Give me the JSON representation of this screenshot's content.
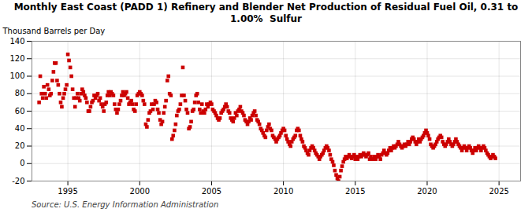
{
  "chart_data": {
    "type": "scatter",
    "title": "Monthly East Coast (PADD 1) Refinery and Blender Net Production of Residual Fuel Oil, 0.31 to\n1.00%  Sulfur",
    "ylabel": "Thousand Barrels per Day",
    "annotations": [
      "Source: U.S. Energy Information Administration"
    ],
    "color": "#cc0000",
    "marker": "square",
    "grid": true,
    "xlim": [
      1992.5,
      2026.5
    ],
    "xticks": [
      1995,
      2000,
      2005,
      2010,
      2015,
      2020,
      2025
    ],
    "ylim": [
      -20,
      140
    ],
    "yticks": [
      -20,
      0,
      20,
      40,
      60,
      80,
      100,
      120,
      140
    ],
    "x": [
      1993.0,
      1993.08,
      1993.17,
      1993.25,
      1993.33,
      1993.42,
      1993.5,
      1993.58,
      1993.67,
      1993.75,
      1993.83,
      1993.92,
      1994.0,
      1994.08,
      1994.17,
      1994.25,
      1994.33,
      1994.42,
      1994.5,
      1994.58,
      1994.67,
      1994.75,
      1994.83,
      1994.92,
      1995.0,
      1995.08,
      1995.17,
      1995.25,
      1995.33,
      1995.42,
      1995.5,
      1995.58,
      1995.67,
      1995.75,
      1995.83,
      1995.92,
      1996.0,
      1996.08,
      1996.17,
      1996.25,
      1996.33,
      1996.42,
      1996.5,
      1996.58,
      1996.67,
      1996.75,
      1996.83,
      1996.92,
      1997.0,
      1997.08,
      1997.17,
      1997.25,
      1997.33,
      1997.42,
      1997.5,
      1997.58,
      1997.67,
      1997.75,
      1997.83,
      1997.92,
      1998.0,
      1998.08,
      1998.17,
      1998.25,
      1998.33,
      1998.42,
      1998.5,
      1998.58,
      1998.67,
      1998.75,
      1998.83,
      1998.92,
      1999.0,
      1999.08,
      1999.17,
      1999.25,
      1999.33,
      1999.42,
      1999.5,
      1999.58,
      1999.67,
      1999.75,
      1999.83,
      1999.92,
      2000.0,
      2000.08,
      2000.17,
      2000.25,
      2000.33,
      2000.42,
      2000.5,
      2000.58,
      2000.67,
      2000.75,
      2000.83,
      2000.92,
      2001.0,
      2001.08,
      2001.17,
      2001.25,
      2001.33,
      2001.42,
      2001.5,
      2001.58,
      2001.67,
      2001.75,
      2001.83,
      2001.92,
      2002.0,
      2002.08,
      2002.17,
      2002.25,
      2002.33,
      2002.42,
      2002.5,
      2002.58,
      2002.67,
      2002.75,
      2002.83,
      2002.92,
      2003.0,
      2003.08,
      2003.17,
      2003.25,
      2003.33,
      2003.42,
      2003.5,
      2003.58,
      2003.67,
      2003.75,
      2003.83,
      2003.92,
      2004.0,
      2004.08,
      2004.17,
      2004.25,
      2004.33,
      2004.42,
      2004.5,
      2004.58,
      2004.67,
      2004.75,
      2004.83,
      2004.92,
      2005.0,
      2005.08,
      2005.17,
      2005.25,
      2005.33,
      2005.42,
      2005.5,
      2005.58,
      2005.67,
      2005.75,
      2005.83,
      2005.92,
      2006.0,
      2006.08,
      2006.17,
      2006.25,
      2006.33,
      2006.42,
      2006.5,
      2006.58,
      2006.67,
      2006.75,
      2006.83,
      2006.92,
      2007.0,
      2007.08,
      2007.17,
      2007.25,
      2007.33,
      2007.42,
      2007.5,
      2007.58,
      2007.67,
      2007.75,
      2007.83,
      2007.92,
      2008.0,
      2008.08,
      2008.17,
      2008.25,
      2008.33,
      2008.42,
      2008.5,
      2008.58,
      2008.67,
      2008.75,
      2008.83,
      2008.92,
      2009.0,
      2009.08,
      2009.17,
      2009.25,
      2009.33,
      2009.42,
      2009.5,
      2009.58,
      2009.67,
      2009.75,
      2009.83,
      2009.92,
      2010.0,
      2010.08,
      2010.17,
      2010.25,
      2010.33,
      2010.42,
      2010.5,
      2010.58,
      2010.67,
      2010.75,
      2010.83,
      2010.92,
      2011.0,
      2011.08,
      2011.17,
      2011.25,
      2011.33,
      2011.42,
      2011.5,
      2011.58,
      2011.67,
      2011.75,
      2011.83,
      2011.92,
      2012.0,
      2012.08,
      2012.17,
      2012.25,
      2012.33,
      2012.42,
      2012.5,
      2012.58,
      2012.67,
      2012.75,
      2012.83,
      2012.92,
      2013.0,
      2013.08,
      2013.17,
      2013.25,
      2013.33,
      2013.42,
      2013.5,
      2013.58,
      2013.67,
      2013.75,
      2013.83,
      2013.92,
      2014.0,
      2014.08,
      2014.17,
      2014.25,
      2014.33,
      2014.42,
      2014.5,
      2014.58,
      2014.67,
      2014.75,
      2014.83,
      2014.92,
      2015.0,
      2015.08,
      2015.17,
      2015.25,
      2015.33,
      2015.42,
      2015.5,
      2015.58,
      2015.67,
      2015.75,
      2015.83,
      2015.92,
      2016.0,
      2016.08,
      2016.17,
      2016.25,
      2016.33,
      2016.42,
      2016.5,
      2016.58,
      2016.67,
      2016.75,
      2016.83,
      2016.92,
      2017.0,
      2017.08,
      2017.17,
      2017.25,
      2017.33,
      2017.42,
      2017.5,
      2017.58,
      2017.67,
      2017.75,
      2017.83,
      2017.92,
      2018.0,
      2018.08,
      2018.17,
      2018.25,
      2018.33,
      2018.42,
      2018.5,
      2018.58,
      2018.67,
      2018.75,
      2018.83,
      2018.92,
      2019.0,
      2019.08,
      2019.17,
      2019.25,
      2019.33,
      2019.42,
      2019.5,
      2019.58,
      2019.67,
      2019.75,
      2019.83,
      2019.92,
      2020.0,
      2020.08,
      2020.17,
      2020.25,
      2020.33,
      2020.42,
      2020.5,
      2020.58,
      2020.67,
      2020.75,
      2020.83,
      2020.92,
      2021.0,
      2021.08,
      2021.17,
      2021.25,
      2021.33,
      2021.42,
      2021.5,
      2021.58,
      2021.67,
      2021.75,
      2021.83,
      2021.92,
      2022.0,
      2022.08,
      2022.17,
      2022.25,
      2022.33,
      2022.42,
      2022.5,
      2022.58,
      2022.67,
      2022.75,
      2022.83,
      2022.92,
      2023.0,
      2023.08,
      2023.17,
      2023.25,
      2023.33,
      2023.42,
      2023.5,
      2023.58,
      2023.67,
      2023.75,
      2023.83,
      2023.92,
      2024.0,
      2024.08,
      2024.17,
      2024.25,
      2024.33,
      2024.42,
      2024.5,
      2024.58,
      2024.67,
      2024.75
    ],
    "values": [
      70,
      100,
      80,
      75,
      88,
      80,
      75,
      90,
      85,
      78,
      80,
      95,
      105,
      115,
      115,
      95,
      90,
      80,
      70,
      65,
      75,
      80,
      85,
      90,
      125,
      118,
      110,
      100,
      85,
      75,
      65,
      75,
      80,
      75,
      72,
      80,
      85,
      82,
      78,
      75,
      70,
      60,
      60,
      65,
      70,
      72,
      78,
      75,
      78,
      80,
      72,
      75,
      68,
      65,
      60,
      68,
      70,
      78,
      82,
      78,
      82,
      80,
      78,
      68,
      62,
      58,
      62,
      68,
      72,
      78,
      82,
      78,
      80,
      82,
      75,
      68,
      70,
      72,
      68,
      62,
      60,
      68,
      78,
      80,
      82,
      80,
      78,
      72,
      68,
      45,
      42,
      50,
      58,
      60,
      68,
      62,
      68,
      72,
      70,
      62,
      58,
      50,
      45,
      48,
      58,
      65,
      72,
      95,
      100,
      80,
      78,
      28,
      32,
      38,
      45,
      55,
      60,
      62,
      68,
      78,
      110,
      78,
      72,
      62,
      58,
      40,
      42,
      48,
      60,
      62,
      70,
      78,
      80,
      70,
      62,
      58,
      68,
      60,
      58,
      62,
      68,
      65,
      68,
      70,
      68,
      62,
      60,
      58,
      55,
      52,
      50,
      52,
      58,
      60,
      62,
      65,
      68,
      65,
      60,
      58,
      52,
      50,
      48,
      52,
      58,
      55,
      60,
      62,
      65,
      60,
      58,
      55,
      50,
      48,
      45,
      48,
      52,
      50,
      55,
      58,
      60,
      55,
      50,
      48,
      45,
      40,
      38,
      35,
      32,
      30,
      38,
      42,
      45,
      40,
      38,
      32,
      30,
      28,
      25,
      28,
      30,
      32,
      35,
      38,
      40,
      38,
      32,
      28,
      25,
      22,
      20,
      25,
      28,
      30,
      32,
      38,
      40,
      38,
      32,
      28,
      25,
      20,
      18,
      15,
      12,
      10,
      15,
      18,
      20,
      18,
      15,
      12,
      10,
      8,
      5,
      8,
      10,
      12,
      15,
      18,
      20,
      18,
      15,
      10,
      5,
      2,
      -2,
      -8,
      -13,
      -17,
      -20,
      -15,
      -8,
      -3,
      2,
      5,
      8,
      6,
      8,
      10,
      8,
      6,
      8,
      10,
      5,
      8,
      5,
      8,
      10,
      8,
      10,
      12,
      10,
      8,
      10,
      12,
      5,
      8,
      5,
      5,
      8,
      5,
      8,
      10,
      8,
      5,
      10,
      12,
      15,
      12,
      10,
      12,
      15,
      18,
      15,
      18,
      20,
      18,
      20,
      22,
      25,
      22,
      20,
      18,
      20,
      22,
      20,
      22,
      25,
      22,
      25,
      28,
      30,
      28,
      25,
      22,
      25,
      28,
      25,
      28,
      30,
      32,
      35,
      38,
      35,
      32,
      28,
      22,
      20,
      18,
      20,
      22,
      25,
      28,
      30,
      32,
      30,
      25,
      22,
      20,
      22,
      25,
      28,
      25,
      22,
      20,
      22,
      25,
      28,
      25,
      22,
      20,
      18,
      15,
      18,
      20,
      18,
      15,
      18,
      20,
      18,
      15,
      12,
      15,
      18,
      15,
      18,
      20,
      18,
      15,
      18,
      20,
      18,
      15,
      12,
      10,
      8,
      6,
      8,
      10,
      8,
      6
    ]
  }
}
